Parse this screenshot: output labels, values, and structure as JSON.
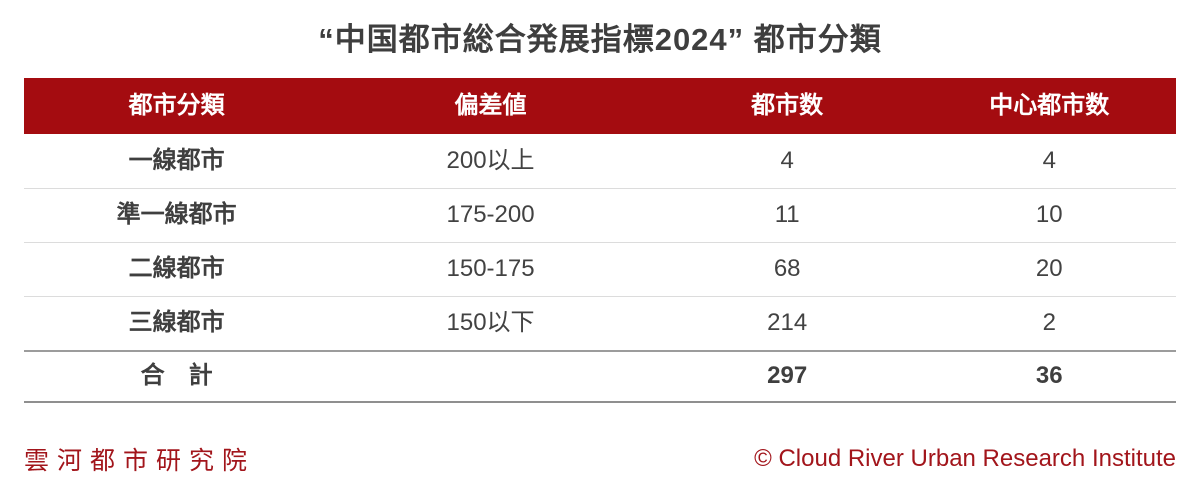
{
  "title": "“中国都市総合発展指標2024” 都市分類",
  "table": {
    "headers": [
      "都市分類",
      "偏差値",
      "都市数",
      "中心都市数"
    ],
    "rows": [
      {
        "category": "一線都市",
        "range": "200以上",
        "cities": "4",
        "central": "4"
      },
      {
        "category": "準一線都市",
        "range": "175-200",
        "cities": "11",
        "central": "10"
      },
      {
        "category": "二線都市",
        "range": "150-175",
        "cities": "68",
        "central": "20"
      },
      {
        "category": "三線都市",
        "range": "150以下",
        "cities": "214",
        "central": "2"
      }
    ],
    "total": {
      "category": "合　計",
      "range": "",
      "cities": "297",
      "central": "36"
    }
  },
  "footer": {
    "left": "雲河都市研究院",
    "right": "© Cloud River Urban Research Institute"
  },
  "colors": {
    "header_bg": "#a40c10",
    "header_text": "#ffffff",
    "body_text": "#424242",
    "footer_text": "#a2151b",
    "separator_light": "#dcdcdc",
    "separator_dark": "#9c9c9c"
  },
  "chart_data": {
    "type": "table",
    "title": "“中国都市総合発展指標2024” 都市分類",
    "columns": [
      "都市分類",
      "偏差値",
      "都市数",
      "中心都市数"
    ],
    "rows": [
      [
        "一線都市",
        "200以上",
        4,
        4
      ],
      [
        "準一線都市",
        "175-200",
        11,
        10
      ],
      [
        "二線都市",
        "150-175",
        68,
        20
      ],
      [
        "三線都市",
        "150以下",
        214,
        2
      ],
      [
        "合　計",
        "",
        297,
        36
      ]
    ],
    "source_left": "雲河都市研究院",
    "source_right": "© Cloud River Urban Research Institute"
  }
}
